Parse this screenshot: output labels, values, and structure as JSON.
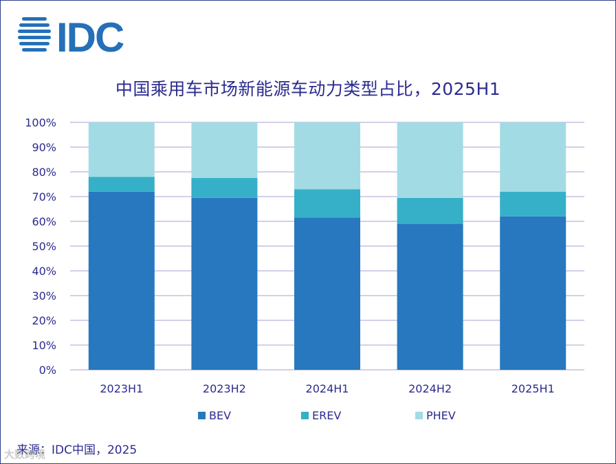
{
  "brand": {
    "logo_text": "IDC"
  },
  "title": "中国乘用车市场新能源车动力类型占比，2025H1",
  "source": "来源：IDC中国，2025",
  "watermark": "大数跨境",
  "colors": {
    "BEV": "#2778bf",
    "EREV": "#36b0c8",
    "PHEV": "#a3dbe5",
    "grid": "#b9b4d9",
    "text": "#2b2b8f"
  },
  "chart_data": {
    "type": "bar",
    "stacked": true,
    "title": "中国乘用车市场新能源车动力类型占比，2025H1",
    "categories": [
      "2023H1",
      "2023H2",
      "2024H1",
      "2024H2",
      "2025H1"
    ],
    "series": [
      {
        "name": "BEV",
        "values": [
          72,
          69.5,
          61.5,
          59,
          62
        ]
      },
      {
        "name": "EREV",
        "values": [
          6,
          8,
          11.5,
          10.5,
          10
        ]
      },
      {
        "name": "PHEV",
        "values": [
          22,
          22.5,
          27,
          30.5,
          28
        ]
      }
    ],
    "ylim": [
      0,
      100
    ],
    "yticks": [
      "0%",
      "10%",
      "20%",
      "30%",
      "40%",
      "50%",
      "60%",
      "70%",
      "80%",
      "90%",
      "100%"
    ],
    "xlabel": "",
    "ylabel": "",
    "legend": "bottom"
  }
}
